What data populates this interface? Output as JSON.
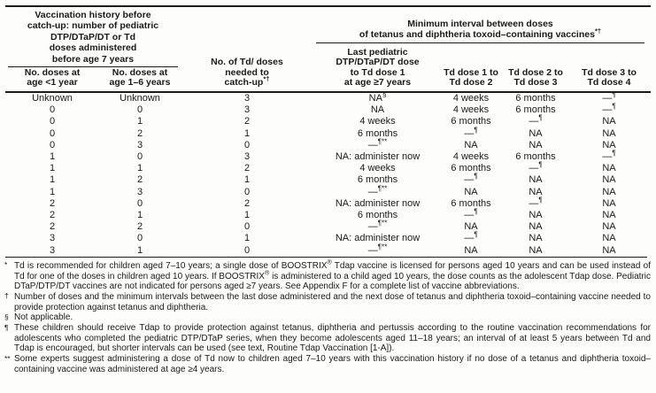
{
  "table": {
    "header": {
      "left_group": {
        "title_lines": [
          "Vaccination history before",
          "catch-up: number of pediatric",
          "DTP/DTaP/DT or Td",
          "doses administered",
          "before age 7 years"
        ],
        "columns": [
          {
            "lines": [
              "No. doses at",
              "age <1 year"
            ]
          },
          {
            "lines": [
              "No. doses at",
              "age 1–6 years"
            ]
          }
        ]
      },
      "middle_column": {
        "lines": [
          "No. of Td/ doses",
          "needed to",
          "catch-up*†"
        ]
      },
      "right_group": {
        "title_lines": [
          "Minimum interval between doses",
          "of tetanus and diphtheria toxoid–containing vaccines*†"
        ],
        "columns": [
          {
            "lines": [
              "Last pediatric",
              "DTP/DTaP/DT dose",
              "to Td dose 1",
              "at age ≥7 years"
            ]
          },
          {
            "lines": [
              "Td dose 1 to",
              "Td dose 2"
            ]
          },
          {
            "lines": [
              "Td dose 2 to",
              "Td dose 3"
            ]
          },
          {
            "lines": [
              "Td dose 3 to",
              "Td dose 4"
            ]
          }
        ]
      }
    },
    "rows": [
      [
        "Unknown",
        "Unknown",
        "3",
        "NA§",
        "4 weeks",
        "6 months",
        "—¶"
      ],
      [
        "0",
        "0",
        "3",
        "NA",
        "4 weeks",
        "6 months",
        "—¶"
      ],
      [
        "0",
        "1",
        "2",
        "4 weeks",
        "6 months",
        "—¶",
        "NA"
      ],
      [
        "0",
        "2",
        "1",
        "6 months",
        "—¶",
        "NA",
        "NA"
      ],
      [
        "0",
        "3",
        "0",
        "—¶**",
        "NA",
        "NA",
        "NA"
      ],
      [
        "1",
        "0",
        "3",
        "NA: administer now",
        "4 weeks",
        "6 months",
        "—¶"
      ],
      [
        "1",
        "1",
        "2",
        "4 weeks",
        "6 months",
        "—¶",
        "NA"
      ],
      [
        "1",
        "2",
        "1",
        "6 months",
        "—¶",
        "NA",
        "NA"
      ],
      [
        "1",
        "3",
        "0",
        "—¶**",
        "NA",
        "NA",
        "NA"
      ],
      [
        "2",
        "0",
        "2",
        "NA: administer now",
        "6 months",
        "—¶",
        "NA"
      ],
      [
        "2",
        "1",
        "1",
        "6 months",
        "—¶",
        "NA",
        "NA"
      ],
      [
        "2",
        "2",
        "0",
        "—¶**",
        "NA",
        "NA",
        "NA"
      ],
      [
        "3",
        "0",
        "1",
        "NA: administer now",
        "—¶",
        "NA",
        "NA"
      ],
      [
        "3",
        "1",
        "0",
        "—¶**",
        "NA",
        "NA",
        "NA"
      ]
    ]
  },
  "footnotes": [
    {
      "marker": "*",
      "text": "Td is recommended for children aged 7–10 years; a single dose of BOOSTRIX® Tdap vaccine is licensed for persons aged 10 years and can be used instead of Td for one of the doses in children aged 10 years. If BOOSTRIX® is administered to a child aged 10 years, the dose counts as the adolescent Tdap dose. Pediatric DTaP/DTP/DT vaccines are not indicated for persons aged ≥7 years. See Appendix F for a complete list of vaccine abbreviations."
    },
    {
      "marker": "†",
      "text": "Number of doses and the minimum intervals between the last dose administered and the next dose of tetanus and diphtheria toxoid–containing vaccine needed to provide protection against tetanus and diphtheria."
    },
    {
      "marker": "§",
      "text": "Not applicable."
    },
    {
      "marker": "¶",
      "text": "These children should receive Tdap to provide protection against tetanus, diphtheria and pertussis according to the routine vaccination recommendations for adolescents who completed the pediatric DTP/DTaP series, when they become adolescents aged 11–18 years; an interval of at least 5 years between Td and Tdap is encouraged, but shorter intervals can be used (see text, Routine Tdap Vaccination [1-A])."
    },
    {
      "marker": "**",
      "text": "Some experts suggest administering a dose of Td now to children aged 7–10 years with this vaccination history if no dose of a tetanus and diphtheria toxoid–containing vaccine was administered at age ≥4 years."
    }
  ],
  "colors": {
    "text": "#1a1a1a",
    "rule": "#1c1c1c",
    "background": "#fdfdfc"
  }
}
